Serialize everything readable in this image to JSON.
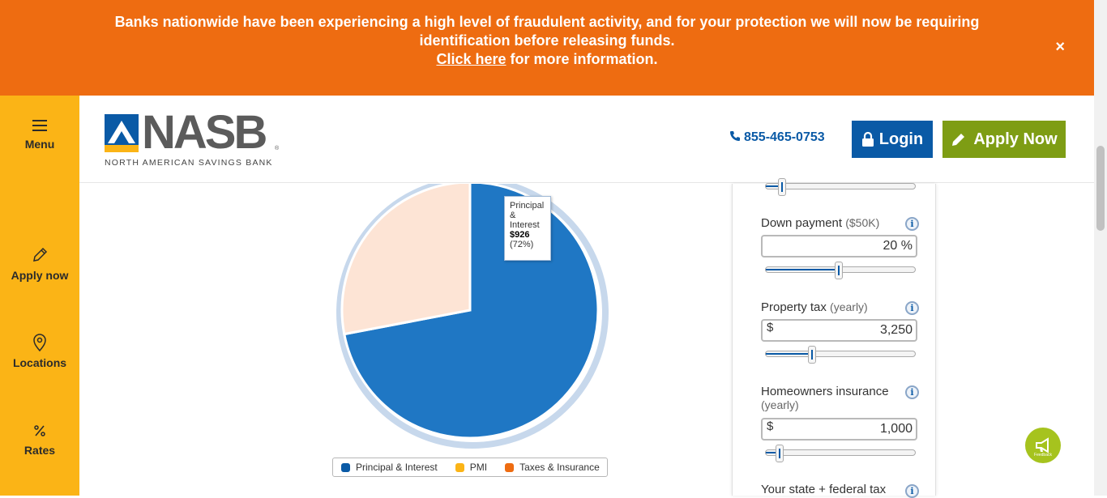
{
  "banner": {
    "line1": "Banks nationwide have been experiencing a high level of fraudulent activity, and for your protection we will now be requiring",
    "line2": "identification before releasing funds.",
    "link_text": "Click here",
    "line3_rest": " for more information.",
    "close": "×"
  },
  "sidebar": {
    "items": [
      {
        "label": "Menu",
        "icon": "menu-icon"
      },
      {
        "label": "Apply now",
        "icon": "pencil-icon"
      },
      {
        "label": "Locations",
        "icon": "map-pin-icon"
      },
      {
        "label": "Rates",
        "icon": "percent-icon"
      }
    ]
  },
  "header": {
    "logo_word": "NASB",
    "logo_reg": "®",
    "logo_subtitle": "NORTH AMERICAN SAVINGS BANK",
    "phone": "855-465-0753",
    "login_label": "Login",
    "apply_label": "Apply Now"
  },
  "chart": {
    "tooltip": {
      "label_line1": "Principal",
      "label_line2": "&",
      "label_line3": "Interest",
      "value": "$926",
      "percent": "(72%)"
    },
    "legend": [
      {
        "label": "Principal & Interest",
        "color": "#0a5aa6"
      },
      {
        "label": "PMI",
        "color": "#fbb416"
      },
      {
        "label": "Taxes & Insurance",
        "color": "#ee6c11"
      }
    ]
  },
  "chart_data": {
    "type": "pie",
    "categories": [
      "Principal & Interest",
      "PMI",
      "Taxes & Insurance"
    ],
    "values": [
      72,
      0,
      28
    ],
    "colors": [
      "#1f77c4",
      "#fbb416",
      "#ee6c11"
    ],
    "highlighted": "Principal & Interest",
    "principal_interest_amount": "$926"
  },
  "calculator": {
    "sliders": {
      "top_slider": 0.11,
      "down_payment": 0.49,
      "property_tax": 0.31,
      "home_insurance": 0.09
    },
    "down_payment": {
      "label": "Down payment",
      "hint": "($50K)",
      "value": "20 %"
    },
    "property_tax": {
      "label": "Property tax",
      "hint": "(yearly)",
      "prefix": "$",
      "value": "3,250"
    },
    "home_insurance": {
      "label": "Homeowners insurance",
      "hint": "(yearly)",
      "prefix": "$",
      "value": "1,000"
    },
    "state_tax": {
      "label": "Your state + federal tax"
    },
    "info_symbol": "i"
  },
  "feedback": {
    "label": "Feedback"
  }
}
